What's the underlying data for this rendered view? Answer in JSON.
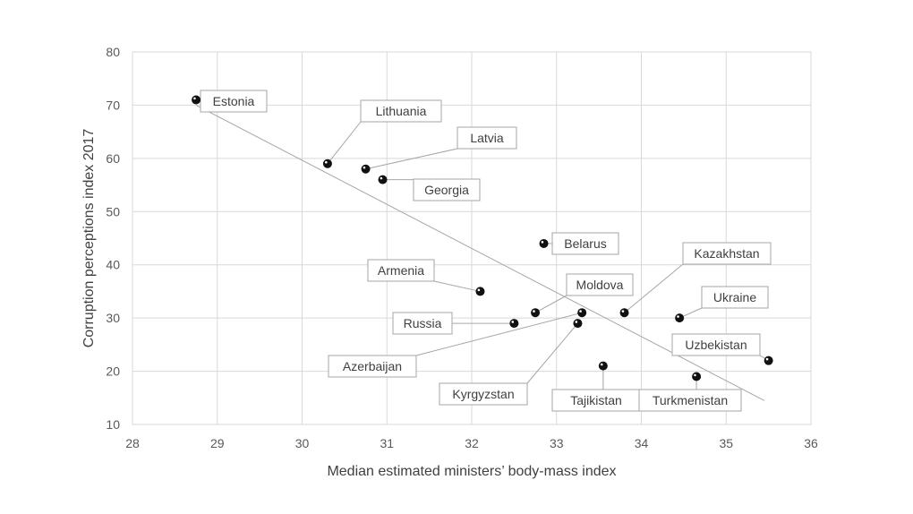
{
  "chart_data": {
    "type": "scatter",
    "title": "",
    "xlabel": "Median estimated ministers’ body-mass index",
    "ylabel": "Corruption perceptions index 2017",
    "xlim": [
      28,
      36
    ],
    "ylim": [
      10,
      80
    ],
    "xticks": [
      "28",
      "29",
      "30",
      "31",
      "32",
      "33",
      "34",
      "35",
      "36"
    ],
    "yticks": [
      "10",
      "20",
      "30",
      "40",
      "50",
      "60",
      "70",
      "80"
    ],
    "grid": true,
    "trendline": {
      "from": [
        28.75,
        70
      ],
      "to": [
        35.45,
        14.5
      ]
    },
    "points": [
      {
        "name": "Estonia",
        "x": 28.75,
        "y": 71
      },
      {
        "name": "Lithuania",
        "x": 30.3,
        "y": 59
      },
      {
        "name": "Latvia",
        "x": 30.75,
        "y": 58
      },
      {
        "name": "Georgia",
        "x": 30.95,
        "y": 56
      },
      {
        "name": "Belarus",
        "x": 32.85,
        "y": 44
      },
      {
        "name": "Armenia",
        "x": 32.1,
        "y": 35
      },
      {
        "name": "Moldova",
        "x": 32.75,
        "y": 31
      },
      {
        "name": "Kazakhstan",
        "x": 33.8,
        "y": 31
      },
      {
        "name": "Ukraine",
        "x": 34.45,
        "y": 30
      },
      {
        "name": "Russia",
        "x": 32.5,
        "y": 29
      },
      {
        "name": "Azerbaijan",
        "x": 33.3,
        "y": 31
      },
      {
        "name": "Kyrgyzstan",
        "x": 33.25,
        "y": 29
      },
      {
        "name": "Uzbekistan",
        "x": 35.5,
        "y": 22
      },
      {
        "name": "Tajikistan",
        "x": 33.55,
        "y": 21
      },
      {
        "name": "Turkmenistan",
        "x": 34.65,
        "y": 19
      }
    ]
  }
}
